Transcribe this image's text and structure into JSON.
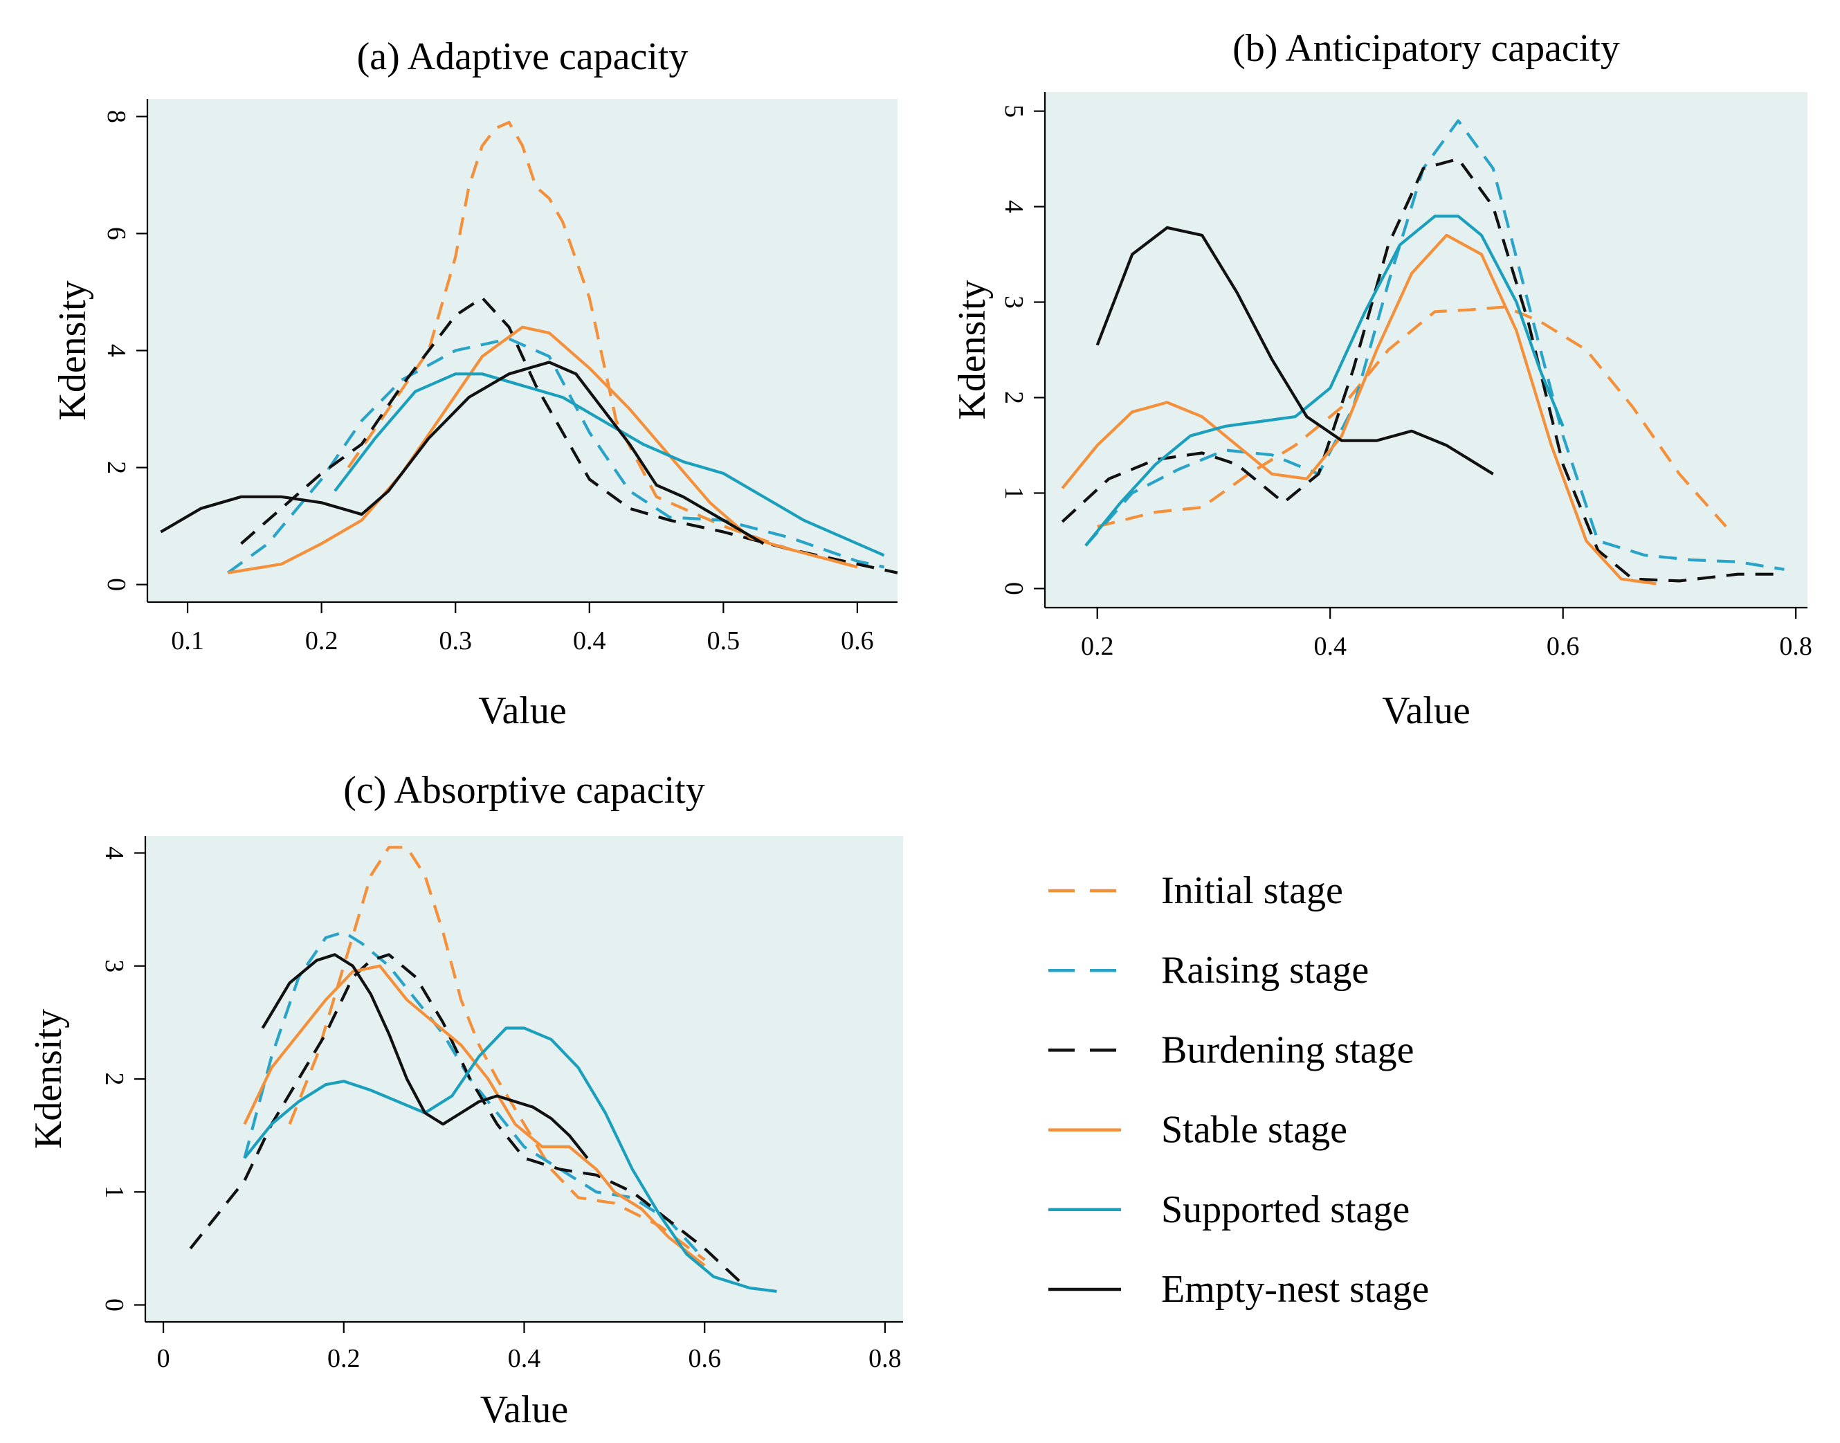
{
  "legend": [
    {
      "name": "Initial stage",
      "color": "#f5903a",
      "dashed": true
    },
    {
      "name": "Raising stage",
      "color": "#2aa3c9",
      "dashed": true
    },
    {
      "name": "Burdening stage",
      "color": "#111111",
      "dashed": true
    },
    {
      "name": "Stable stage",
      "color": "#f5903a",
      "dashed": false
    },
    {
      "name": "Supported stage",
      "color": "#1a9fbd",
      "dashed": false
    },
    {
      "name": "Empty-nest stage",
      "color": "#111111",
      "dashed": false
    }
  ],
  "chart_data": [
    {
      "type": "line",
      "title": "(a) Adaptive capacity",
      "xlabel": "Value",
      "ylabel": "Kdensity",
      "xlim": [
        0.07,
        0.63
      ],
      "ylim": [
        -0.3,
        8.3
      ],
      "xticks": [
        0.1,
        0.2,
        0.3,
        0.4,
        0.5,
        0.6
      ],
      "xtick_labels": [
        "0.1",
        "0.2",
        "0.3",
        "0.4",
        "0.5",
        "0.6"
      ],
      "yticks": [
        0,
        2,
        4,
        6,
        8
      ],
      "ytick_labels": [
        "0",
        "2",
        "4",
        "6",
        "8"
      ],
      "series": [
        {
          "name": "Initial stage",
          "x": [
            0.22,
            0.25,
            0.28,
            0.3,
            0.31,
            0.32,
            0.33,
            0.34,
            0.35,
            0.36,
            0.37,
            0.38,
            0.4,
            0.42,
            0.45,
            0.5,
            0.55,
            0.6
          ],
          "y": [
            2.0,
            3.0,
            4.0,
            5.6,
            6.8,
            7.5,
            7.8,
            7.9,
            7.5,
            6.8,
            6.6,
            6.2,
            4.9,
            2.8,
            1.5,
            1.0,
            0.6,
            0.3
          ]
        },
        {
          "name": "Raising stage",
          "x": [
            0.13,
            0.16,
            0.2,
            0.23,
            0.26,
            0.3,
            0.34,
            0.37,
            0.4,
            0.43,
            0.46,
            0.5,
            0.55,
            0.6,
            0.62
          ],
          "y": [
            0.2,
            0.7,
            1.8,
            2.8,
            3.5,
            4.0,
            4.2,
            3.9,
            2.6,
            1.6,
            1.15,
            1.1,
            0.8,
            0.4,
            0.3
          ]
        },
        {
          "name": "Burdening stage",
          "x": [
            0.14,
            0.17,
            0.2,
            0.23,
            0.26,
            0.28,
            0.3,
            0.32,
            0.34,
            0.36,
            0.38,
            0.4,
            0.43,
            0.46,
            0.5,
            0.55,
            0.6,
            0.63
          ],
          "y": [
            0.7,
            1.3,
            1.9,
            2.4,
            3.4,
            4.0,
            4.6,
            4.9,
            4.4,
            3.4,
            2.6,
            1.8,
            1.3,
            1.1,
            0.9,
            0.6,
            0.35,
            0.2
          ]
        },
        {
          "name": "Stable stage",
          "x": [
            0.13,
            0.17,
            0.2,
            0.23,
            0.26,
            0.29,
            0.32,
            0.35,
            0.37,
            0.4,
            0.43,
            0.46,
            0.49,
            0.52,
            0.55,
            0.6
          ],
          "y": [
            0.2,
            0.35,
            0.7,
            1.1,
            1.9,
            2.9,
            3.9,
            4.4,
            4.3,
            3.7,
            3.0,
            2.2,
            1.4,
            0.8,
            0.6,
            0.3
          ]
        },
        {
          "name": "Supported stage",
          "x": [
            0.21,
            0.24,
            0.27,
            0.3,
            0.32,
            0.35,
            0.38,
            0.41,
            0.44,
            0.47,
            0.5,
            0.53,
            0.56,
            0.6,
            0.62
          ],
          "y": [
            1.6,
            2.5,
            3.3,
            3.6,
            3.6,
            3.4,
            3.2,
            2.8,
            2.4,
            2.1,
            1.9,
            1.5,
            1.1,
            0.7,
            0.5
          ]
        },
        {
          "name": "Empty-nest stage",
          "x": [
            0.08,
            0.11,
            0.14,
            0.17,
            0.2,
            0.23,
            0.25,
            0.28,
            0.31,
            0.34,
            0.37,
            0.39,
            0.41,
            0.43,
            0.45,
            0.47,
            0.5,
            0.53
          ],
          "y": [
            0.9,
            1.3,
            1.5,
            1.5,
            1.4,
            1.2,
            1.6,
            2.5,
            3.2,
            3.6,
            3.8,
            3.6,
            3.0,
            2.4,
            1.7,
            1.5,
            1.1,
            0.7
          ]
        }
      ]
    },
    {
      "type": "line",
      "title": "(b) Anticipatory capacity",
      "xlabel": "Value",
      "ylabel": "Kdensity",
      "xlim": [
        0.155,
        0.81
      ],
      "ylim": [
        -0.2,
        5.2
      ],
      "xticks": [
        0.2,
        0.4,
        0.6,
        0.8
      ],
      "xtick_labels": [
        "0.2",
        "0.4",
        "0.6",
        "0.8"
      ],
      "yticks": [
        0,
        1,
        2,
        3,
        4,
        5
      ],
      "ytick_labels": [
        "0",
        "1",
        "2",
        "3",
        "4",
        "5"
      ],
      "series": [
        {
          "name": "Initial stage",
          "x": [
            0.2,
            0.25,
            0.29,
            0.33,
            0.37,
            0.41,
            0.45,
            0.49,
            0.52,
            0.55,
            0.58,
            0.62,
            0.66,
            0.7,
            0.74
          ],
          "y": [
            0.65,
            0.8,
            0.85,
            1.2,
            1.5,
            1.9,
            2.5,
            2.9,
            2.92,
            2.95,
            2.8,
            2.5,
            1.9,
            1.2,
            0.65
          ]
        },
        {
          "name": "Raising stage",
          "x": [
            0.19,
            0.23,
            0.27,
            0.31,
            0.35,
            0.39,
            0.42,
            0.45,
            0.48,
            0.51,
            0.54,
            0.57,
            0.6,
            0.63,
            0.67,
            0.71,
            0.75,
            0.79
          ],
          "y": [
            0.45,
            1.0,
            1.25,
            1.45,
            1.4,
            1.2,
            1.9,
            3.2,
            4.4,
            4.9,
            4.4,
            3.0,
            1.6,
            0.5,
            0.35,
            0.3,
            0.28,
            0.2
          ]
        },
        {
          "name": "Burdening stage",
          "x": [
            0.17,
            0.21,
            0.25,
            0.29,
            0.32,
            0.36,
            0.39,
            0.42,
            0.45,
            0.48,
            0.51,
            0.54,
            0.57,
            0.6,
            0.63,
            0.66,
            0.7,
            0.75,
            0.79
          ],
          "y": [
            0.7,
            1.15,
            1.35,
            1.42,
            1.3,
            0.9,
            1.2,
            2.3,
            3.6,
            4.4,
            4.5,
            4.0,
            2.8,
            1.3,
            0.4,
            0.1,
            0.08,
            0.15,
            0.15
          ]
        },
        {
          "name": "Stable stage",
          "x": [
            0.17,
            0.2,
            0.23,
            0.26,
            0.29,
            0.32,
            0.35,
            0.38,
            0.41,
            0.44,
            0.47,
            0.5,
            0.53,
            0.56,
            0.59,
            0.62,
            0.65,
            0.68
          ],
          "y": [
            1.05,
            1.5,
            1.85,
            1.95,
            1.8,
            1.5,
            1.2,
            1.15,
            1.6,
            2.5,
            3.3,
            3.7,
            3.5,
            2.7,
            1.5,
            0.5,
            0.1,
            0.05
          ]
        },
        {
          "name": "Supported stage",
          "x": [
            0.19,
            0.22,
            0.25,
            0.28,
            0.31,
            0.34,
            0.37,
            0.4,
            0.43,
            0.46,
            0.49,
            0.51,
            0.53,
            0.56,
            0.58,
            0.6
          ],
          "y": [
            0.45,
            0.9,
            1.3,
            1.6,
            1.7,
            1.75,
            1.8,
            2.1,
            2.9,
            3.6,
            3.9,
            3.9,
            3.7,
            3.0,
            2.3,
            1.7
          ]
        },
        {
          "name": "Empty-nest stage",
          "x": [
            0.2,
            0.23,
            0.26,
            0.29,
            0.32,
            0.35,
            0.38,
            0.41,
            0.44,
            0.47,
            0.5,
            0.52,
            0.54
          ],
          "y": [
            2.55,
            3.5,
            3.78,
            3.7,
            3.1,
            2.4,
            1.8,
            1.55,
            1.55,
            1.65,
            1.5,
            1.35,
            1.2
          ]
        }
      ]
    },
    {
      "type": "line",
      "title": "(c) Absorptive capacity",
      "xlabel": "Value",
      "ylabel": "Kdensity",
      "xlim": [
        -0.02,
        0.82
      ],
      "ylim": [
        -0.15,
        4.15
      ],
      "xticks": [
        0,
        0.2,
        0.4,
        0.6,
        0.8
      ],
      "xtick_labels": [
        "0",
        "0.2",
        "0.4",
        "0.6",
        "0.8"
      ],
      "yticks": [
        0,
        1,
        2,
        3,
        4
      ],
      "ytick_labels": [
        "0",
        "1",
        "2",
        "3",
        "4"
      ],
      "series": [
        {
          "name": "Initial stage",
          "x": [
            0.14,
            0.17,
            0.2,
            0.23,
            0.25,
            0.27,
            0.29,
            0.31,
            0.33,
            0.35,
            0.37,
            0.4,
            0.43,
            0.46,
            0.5,
            0.55,
            0.6
          ],
          "y": [
            1.6,
            2.2,
            3.0,
            3.8,
            4.05,
            4.05,
            3.8,
            3.3,
            2.7,
            2.3,
            2.0,
            1.6,
            1.2,
            0.95,
            0.9,
            0.7,
            0.4
          ]
        },
        {
          "name": "Raising stage",
          "x": [
            0.09,
            0.12,
            0.15,
            0.18,
            0.2,
            0.22,
            0.25,
            0.28,
            0.31,
            0.34,
            0.37,
            0.4,
            0.44,
            0.48,
            0.52,
            0.56,
            0.6
          ],
          "y": [
            1.3,
            2.2,
            2.9,
            3.25,
            3.3,
            3.2,
            3.0,
            2.7,
            2.4,
            2.0,
            1.7,
            1.4,
            1.2,
            1.0,
            0.95,
            0.75,
            0.4
          ]
        },
        {
          "name": "Burdening stage",
          "x": [
            0.03,
            0.06,
            0.09,
            0.12,
            0.15,
            0.18,
            0.21,
            0.23,
            0.25,
            0.28,
            0.31,
            0.34,
            0.37,
            0.4,
            0.44,
            0.48,
            0.52,
            0.56,
            0.6,
            0.64
          ],
          "y": [
            0.5,
            0.8,
            1.1,
            1.6,
            2.0,
            2.4,
            2.9,
            3.05,
            3.1,
            2.9,
            2.5,
            2.0,
            1.6,
            1.3,
            1.2,
            1.15,
            1.0,
            0.75,
            0.5,
            0.2
          ]
        },
        {
          "name": "Stable stage",
          "x": [
            0.09,
            0.12,
            0.15,
            0.18,
            0.21,
            0.24,
            0.27,
            0.3,
            0.33,
            0.36,
            0.39,
            0.42,
            0.45,
            0.48,
            0.5,
            0.53,
            0.56,
            0.6
          ],
          "y": [
            1.6,
            2.1,
            2.4,
            2.7,
            2.95,
            3.0,
            2.7,
            2.5,
            2.3,
            2.0,
            1.6,
            1.4,
            1.4,
            1.2,
            1.0,
            0.85,
            0.6,
            0.35
          ]
        },
        {
          "name": "Supported stage",
          "x": [
            0.09,
            0.12,
            0.15,
            0.18,
            0.2,
            0.23,
            0.26,
            0.29,
            0.32,
            0.35,
            0.38,
            0.4,
            0.43,
            0.46,
            0.49,
            0.52,
            0.55,
            0.58,
            0.61,
            0.65,
            0.68
          ],
          "y": [
            1.3,
            1.6,
            1.8,
            1.95,
            1.98,
            1.9,
            1.8,
            1.7,
            1.85,
            2.2,
            2.45,
            2.45,
            2.35,
            2.1,
            1.7,
            1.2,
            0.8,
            0.45,
            0.25,
            0.15,
            0.12
          ]
        },
        {
          "name": "Empty-nest stage",
          "x": [
            0.11,
            0.14,
            0.17,
            0.19,
            0.21,
            0.23,
            0.25,
            0.27,
            0.29,
            0.31,
            0.33,
            0.35,
            0.37,
            0.39,
            0.41,
            0.43,
            0.45,
            0.47
          ],
          "y": [
            2.45,
            2.85,
            3.05,
            3.1,
            3.0,
            2.75,
            2.4,
            2.0,
            1.7,
            1.6,
            1.7,
            1.8,
            1.85,
            1.8,
            1.75,
            1.65,
            1.5,
            1.3
          ]
        }
      ]
    }
  ]
}
